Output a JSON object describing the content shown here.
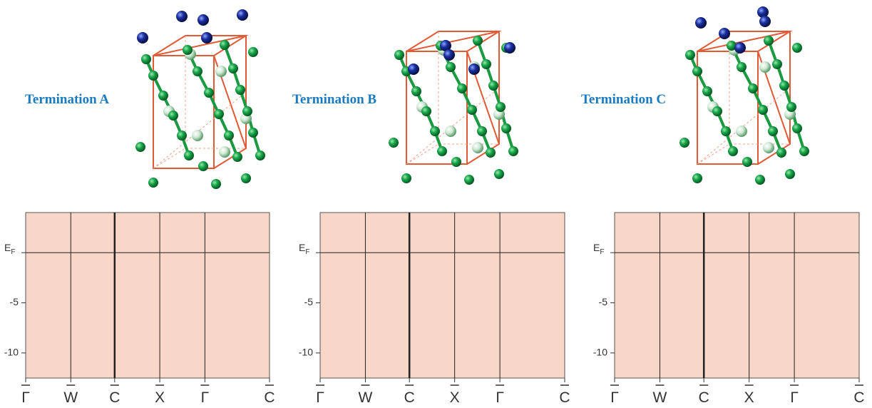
{
  "panels": [
    {
      "label": "Termination  A"
    },
    {
      "label": "Termination  B"
    },
    {
      "label": "Termination  C"
    }
  ],
  "band_plot": {
    "ylim": [
      -12.5,
      4
    ],
    "yticks": [
      {
        "value": 0,
        "label": "E",
        "subscript": "F"
      },
      -5,
      -10
    ],
    "xticks": [
      "Γ",
      "W",
      "C",
      "X",
      "Γ",
      "C"
    ]
  }
}
